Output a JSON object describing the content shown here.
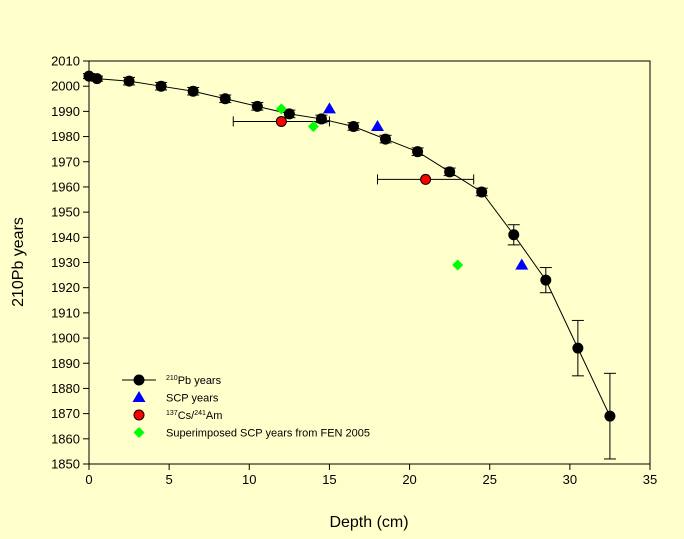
{
  "chart_data": {
    "type": "scatter",
    "xlabel": "Depth (cm)",
    "ylabel": "210Pb years",
    "xlim": [
      0,
      35
    ],
    "ylim": [
      1850,
      2010
    ],
    "xticks": [
      0,
      5,
      10,
      15,
      20,
      25,
      30,
      35
    ],
    "yticks": [
      1850,
      1860,
      1870,
      1880,
      1890,
      1900,
      1910,
      1920,
      1930,
      1940,
      1950,
      1960,
      1970,
      1980,
      1990,
      2000,
      2010
    ],
    "grid": false,
    "legend_position": "bottom-left",
    "colors": {
      "background": "#ffffcc",
      "pb": "#000000",
      "scp": "#0000ff",
      "csam": "#ff0000",
      "fen": "#00ff00"
    },
    "series": [
      {
        "name": "210Pb years",
        "legend_sup": "210",
        "legend_main": "Pb years",
        "marker": "circle",
        "line": true,
        "points": [
          {
            "x": 0,
            "y": 2004,
            "err": 1
          },
          {
            "x": 0.5,
            "y": 2003,
            "err": 1
          },
          {
            "x": 2.5,
            "y": 2002,
            "err": 1.5
          },
          {
            "x": 4.5,
            "y": 2000,
            "err": 1.5
          },
          {
            "x": 6.5,
            "y": 1998,
            "err": 1.5
          },
          {
            "x": 8.5,
            "y": 1995,
            "err": 1.5
          },
          {
            "x": 10.5,
            "y": 1992,
            "err": 1.5
          },
          {
            "x": 12.5,
            "y": 1989,
            "err": 1.5
          },
          {
            "x": 14.5,
            "y": 1987,
            "err": 1.5
          },
          {
            "x": 16.5,
            "y": 1984,
            "err": 1.5
          },
          {
            "x": 18.5,
            "y": 1979,
            "err": 1.5
          },
          {
            "x": 20.5,
            "y": 1974,
            "err": 1.5
          },
          {
            "x": 22.5,
            "y": 1966,
            "err": 1.5
          },
          {
            "x": 24.5,
            "y": 1958,
            "err": 1.5
          },
          {
            "x": 26.5,
            "y": 1941,
            "err": 4
          },
          {
            "x": 28.5,
            "y": 1923,
            "err": 5
          },
          {
            "x": 30.5,
            "y": 1896,
            "err": 11
          },
          {
            "x": 32.5,
            "y": 1869,
            "err": 17
          }
        ]
      },
      {
        "name": "SCP years",
        "legend_main": "SCP years",
        "marker": "triangle",
        "line": false,
        "points": [
          {
            "x": 15,
            "y": 1991
          },
          {
            "x": 18,
            "y": 1984
          },
          {
            "x": 27,
            "y": 1929
          }
        ]
      },
      {
        "name": "137Cs/241Am",
        "legend_sup": "137",
        "legend_main": "Cs/",
        "legend_sup2": "241",
        "legend_main2": "Am",
        "marker": "circle-red",
        "line": false,
        "points": [
          {
            "x": 12,
            "y": 1986,
            "xerr_low": 9,
            "xerr_high": 15
          },
          {
            "x": 21,
            "y": 1963,
            "xerr_low": 18,
            "xerr_high": 24
          }
        ]
      },
      {
        "name": "Superimposed SCP years from FEN 2005",
        "legend_main": "Superimposed SCP years from FEN 2005",
        "marker": "diamond",
        "line": false,
        "points": [
          {
            "x": 12,
            "y": 1991
          },
          {
            "x": 14,
            "y": 1984
          },
          {
            "x": 23,
            "y": 1929
          }
        ]
      }
    ]
  }
}
